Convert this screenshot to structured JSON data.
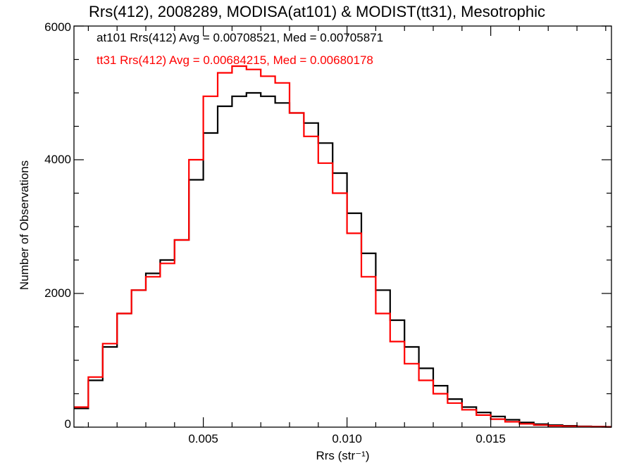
{
  "chart_data": {
    "type": "line",
    "title": "Rrs(412), 2008289, MODISA(at101) & MODIST(tt31), Mesotrophic",
    "xlabel": "Rrs (str⁻¹)",
    "ylabel": "Number of Observations",
    "xlim": [
      0.0005,
      0.0192
    ],
    "ylim": [
      0,
      6000
    ],
    "x_ticks": [
      0.005,
      0.01,
      0.015
    ],
    "x_tick_labels": [
      "0.005",
      "0.010",
      "0.015"
    ],
    "y_ticks": [
      0,
      2000,
      4000,
      6000
    ],
    "y_tick_labels": [
      "0",
      "2000",
      "4000",
      "6000"
    ],
    "grid": false,
    "legend_position": "top-left",
    "x": [
      0.0005,
      0.001,
      0.0015,
      0.002,
      0.0025,
      0.003,
      0.0035,
      0.004,
      0.0045,
      0.005,
      0.0055,
      0.006,
      0.0065,
      0.007,
      0.0075,
      0.008,
      0.0085,
      0.009,
      0.0095,
      0.01,
      0.0105,
      0.011,
      0.0115,
      0.012,
      0.0125,
      0.013,
      0.0135,
      0.014,
      0.0145,
      0.015,
      0.0155,
      0.016,
      0.0165,
      0.017,
      0.0175,
      0.018,
      0.0185,
      0.019
    ],
    "series": [
      {
        "name": "at101",
        "color": "#000000",
        "annotation": "at101 Rrs(412) Avg = 0.00708521, Med = 0.00705871",
        "values": [
          280,
          700,
          1200,
          1700,
          2050,
          2300,
          2500,
          2800,
          3700,
          4400,
          4800,
          4950,
          5000,
          4950,
          4850,
          4700,
          4550,
          4250,
          3800,
          3200,
          2600,
          2050,
          1600,
          1200,
          880,
          620,
          420,
          300,
          220,
          160,
          110,
          70,
          45,
          30,
          20,
          12,
          8,
          5
        ]
      },
      {
        "name": "tt31",
        "color": "#ff0000",
        "annotation": "tt31 Rrs(412) Avg = 0.00684215, Med = 0.00680178",
        "values": [
          300,
          750,
          1250,
          1700,
          2050,
          2250,
          2450,
          2800,
          4000,
          4950,
          5300,
          5400,
          5350,
          5250,
          5150,
          4700,
          4350,
          3950,
          3500,
          2900,
          2250,
          1700,
          1280,
          950,
          700,
          500,
          360,
          260,
          180,
          120,
          80,
          50,
          32,
          20,
          12,
          8,
          5,
          3
        ]
      }
    ]
  }
}
